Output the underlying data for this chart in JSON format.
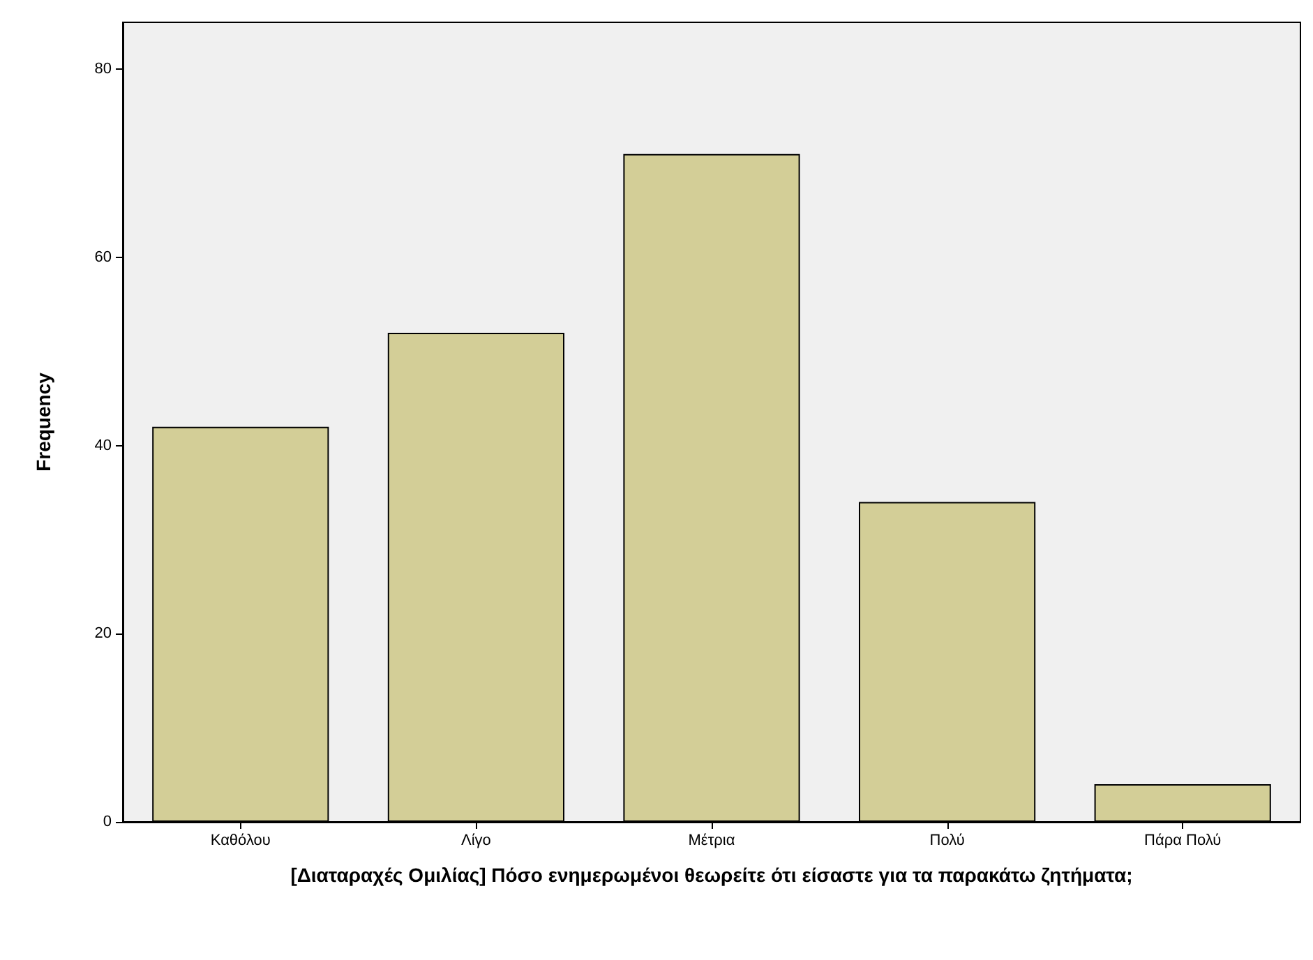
{
  "chart_data": {
    "type": "bar",
    "xlabel": "[Διαταραχές Ομιλίας] Πόσο ενημερωμένοι θεωρείτε ότι είσαστε για τα παρακάτω ζητήματα;",
    "ylabel": "Frequency",
    "categories": [
      "Καθόλου",
      "Λίγο",
      "Μέτρια",
      "Πολύ",
      "Πάρα Πολύ"
    ],
    "values": [
      42,
      52,
      71,
      34,
      4
    ],
    "color": "#d3ce97",
    "ylim": [
      0,
      85
    ],
    "yticks": [
      0,
      20,
      40,
      60,
      80
    ],
    "grid": false
  }
}
